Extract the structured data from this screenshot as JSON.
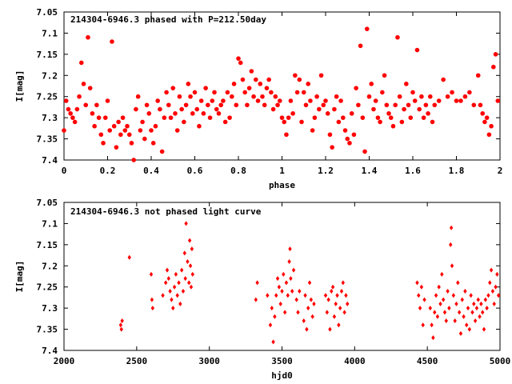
{
  "colors": {
    "points": "#ff0000",
    "axes": "#000000",
    "background": "#ffffff"
  },
  "chart_data": [
    {
      "type": "scatter",
      "title": "214304-6946.3 phased with P=212.50day",
      "xlabel": "phase",
      "ylabel": "I[mag]",
      "xlim": [
        0,
        2
      ],
      "ylim": [
        7.05,
        7.4
      ],
      "y_inverted": true,
      "grid": false,
      "marker": "filled circle",
      "xticks": [
        "0",
        "0.2",
        "0.4",
        "0.6",
        "0.8",
        "1",
        "1.2",
        "1.4",
        "1.6",
        "1.8",
        "2"
      ],
      "yticks": [
        "7.05",
        "7.1",
        "7.15",
        "7.2",
        "7.25",
        "7.3",
        "7.35",
        "7.4"
      ],
      "points": [
        [
          0.0,
          7.33
        ],
        [
          0.01,
          7.26
        ],
        [
          0.02,
          7.28
        ],
        [
          0.03,
          7.29
        ],
        [
          0.04,
          7.3
        ],
        [
          0.05,
          7.31
        ],
        [
          0.06,
          7.28
        ],
        [
          0.07,
          7.25
        ],
        [
          0.08,
          7.17
        ],
        [
          0.09,
          7.22
        ],
        [
          0.1,
          7.27
        ],
        [
          0.11,
          7.11
        ],
        [
          0.12,
          7.23
        ],
        [
          0.13,
          7.29
        ],
        [
          0.14,
          7.32
        ],
        [
          0.15,
          7.27
        ],
        [
          0.16,
          7.3
        ],
        [
          0.17,
          7.34
        ],
        [
          0.18,
          7.36
        ],
        [
          0.19,
          7.3
        ],
        [
          0.2,
          7.26
        ],
        [
          0.21,
          7.33
        ],
        [
          0.22,
          7.12
        ],
        [
          0.23,
          7.32
        ],
        [
          0.24,
          7.37
        ],
        [
          0.25,
          7.31
        ],
        [
          0.26,
          7.34
        ],
        [
          0.27,
          7.3
        ],
        [
          0.28,
          7.33
        ],
        [
          0.29,
          7.32
        ],
        [
          0.3,
          7.34
        ],
        [
          0.31,
          7.36
        ],
        [
          0.32,
          7.4
        ],
        [
          0.33,
          7.28
        ],
        [
          0.34,
          7.25
        ],
        [
          0.35,
          7.33
        ],
        [
          0.36,
          7.31
        ],
        [
          0.37,
          7.35
        ],
        [
          0.38,
          7.27
        ],
        [
          0.39,
          7.29
        ],
        [
          0.4,
          7.33
        ],
        [
          0.41,
          7.36
        ],
        [
          0.42,
          7.32
        ],
        [
          0.43,
          7.26
        ],
        [
          0.44,
          7.28
        ],
        [
          0.45,
          7.38
        ],
        [
          0.46,
          7.3
        ],
        [
          0.47,
          7.24
        ],
        [
          0.48,
          7.27
        ],
        [
          0.49,
          7.3
        ],
        [
          0.5,
          7.23
        ],
        [
          0.51,
          7.29
        ],
        [
          0.52,
          7.33
        ],
        [
          0.53,
          7.25
        ],
        [
          0.54,
          7.28
        ],
        [
          0.55,
          7.31
        ],
        [
          0.56,
          7.27
        ],
        [
          0.57,
          7.22
        ],
        [
          0.58,
          7.25
        ],
        [
          0.59,
          7.29
        ],
        [
          0.6,
          7.24
        ],
        [
          0.61,
          7.28
        ],
        [
          0.62,
          7.32
        ],
        [
          0.63,
          7.26
        ],
        [
          0.64,
          7.29
        ],
        [
          0.65,
          7.23
        ],
        [
          0.66,
          7.27
        ],
        [
          0.67,
          7.3
        ],
        [
          0.68,
          7.26
        ],
        [
          0.69,
          7.24
        ],
        [
          0.7,
          7.28
        ],
        [
          0.71,
          7.29
        ],
        [
          0.72,
          7.27
        ],
        [
          0.73,
          7.26
        ],
        [
          0.74,
          7.31
        ],
        [
          0.75,
          7.24
        ],
        [
          0.76,
          7.3
        ],
        [
          0.77,
          7.25
        ],
        [
          0.78,
          7.22
        ],
        [
          0.79,
          7.27
        ],
        [
          0.8,
          7.16
        ],
        [
          0.81,
          7.17
        ],
        [
          0.82,
          7.21
        ],
        [
          0.83,
          7.24
        ],
        [
          0.84,
          7.27
        ],
        [
          0.85,
          7.23
        ],
        [
          0.86,
          7.19
        ],
        [
          0.87,
          7.25
        ],
        [
          0.88,
          7.21
        ],
        [
          0.89,
          7.26
        ],
        [
          0.9,
          7.22
        ],
        [
          0.91,
          7.25
        ],
        [
          0.92,
          7.27
        ],
        [
          0.93,
          7.23
        ],
        [
          0.94,
          7.21
        ],
        [
          0.95,
          7.24
        ],
        [
          0.96,
          7.28
        ],
        [
          0.97,
          7.25
        ],
        [
          0.98,
          7.27
        ],
        [
          0.99,
          7.26
        ],
        [
          1.0,
          7.3
        ],
        [
          1.01,
          7.31
        ],
        [
          1.02,
          7.34
        ],
        [
          1.03,
          7.3
        ],
        [
          1.04,
          7.26
        ],
        [
          1.05,
          7.29
        ],
        [
          1.06,
          7.2
        ],
        [
          1.07,
          7.24
        ],
        [
          1.08,
          7.21
        ],
        [
          1.09,
          7.31
        ],
        [
          1.1,
          7.24
        ],
        [
          1.11,
          7.27
        ],
        [
          1.12,
          7.22
        ],
        [
          1.13,
          7.26
        ],
        [
          1.14,
          7.33
        ],
        [
          1.15,
          7.3
        ],
        [
          1.16,
          7.25
        ],
        [
          1.17,
          7.28
        ],
        [
          1.18,
          7.2
        ],
        [
          1.19,
          7.27
        ],
        [
          1.2,
          7.26
        ],
        [
          1.21,
          7.29
        ],
        [
          1.22,
          7.34
        ],
        [
          1.23,
          7.37
        ],
        [
          1.24,
          7.28
        ],
        [
          1.25,
          7.25
        ],
        [
          1.26,
          7.31
        ],
        [
          1.27,
          7.26
        ],
        [
          1.28,
          7.3
        ],
        [
          1.29,
          7.33
        ],
        [
          1.3,
          7.35
        ],
        [
          1.31,
          7.36
        ],
        [
          1.32,
          7.29
        ],
        [
          1.33,
          7.34
        ],
        [
          1.34,
          7.23
        ],
        [
          1.35,
          7.27
        ],
        [
          1.36,
          7.13
        ],
        [
          1.37,
          7.3
        ],
        [
          1.38,
          7.38
        ],
        [
          1.39,
          7.09
        ],
        [
          1.4,
          7.25
        ],
        [
          1.41,
          7.22
        ],
        [
          1.42,
          7.28
        ],
        [
          1.43,
          7.26
        ],
        [
          1.44,
          7.3
        ],
        [
          1.45,
          7.31
        ],
        [
          1.46,
          7.24
        ],
        [
          1.47,
          7.2
        ],
        [
          1.48,
          7.27
        ],
        [
          1.49,
          7.29
        ],
        [
          1.5,
          7.3
        ],
        [
          1.51,
          7.32
        ],
        [
          1.52,
          7.27
        ],
        [
          1.53,
          7.11
        ],
        [
          1.54,
          7.25
        ],
        [
          1.55,
          7.31
        ],
        [
          1.56,
          7.28
        ],
        [
          1.57,
          7.22
        ],
        [
          1.58,
          7.27
        ],
        [
          1.59,
          7.3
        ],
        [
          1.6,
          7.24
        ],
        [
          1.61,
          7.26
        ],
        [
          1.62,
          7.14
        ],
        [
          1.63,
          7.28
        ],
        [
          1.64,
          7.25
        ],
        [
          1.65,
          7.3
        ],
        [
          1.66,
          7.27
        ],
        [
          1.67,
          7.29
        ],
        [
          1.68,
          7.25
        ],
        [
          1.69,
          7.31
        ],
        [
          1.7,
          7.27
        ],
        [
          1.72,
          7.26
        ],
        [
          1.74,
          7.21
        ],
        [
          1.76,
          7.25
        ],
        [
          1.78,
          7.24
        ],
        [
          1.8,
          7.26
        ],
        [
          1.82,
          7.26
        ],
        [
          1.84,
          7.25
        ],
        [
          1.86,
          7.24
        ],
        [
          1.88,
          7.27
        ],
        [
          1.9,
          7.2
        ],
        [
          1.91,
          7.27
        ],
        [
          1.92,
          7.29
        ],
        [
          1.93,
          7.31
        ],
        [
          1.94,
          7.3
        ],
        [
          1.95,
          7.34
        ],
        [
          1.96,
          7.32
        ],
        [
          1.97,
          7.18
        ],
        [
          1.98,
          7.15
        ],
        [
          1.99,
          7.26
        ]
      ]
    },
    {
      "type": "scatter",
      "title": "214304-6946.3 not phased light curve",
      "xlabel": "hjd0",
      "ylabel": "I[mag]",
      "xlim": [
        2000,
        5000
      ],
      "ylim": [
        7.05,
        7.4
      ],
      "y_inverted": true,
      "grid": false,
      "marker": "filled diamond",
      "xticks": [
        "2000",
        "2500",
        "3000",
        "3500",
        "4000",
        "4500",
        "5000"
      ],
      "yticks": [
        "7.05",
        "7.1",
        "7.15",
        "7.2",
        "7.25",
        "7.3",
        "7.35",
        "7.4"
      ],
      "points": [
        [
          2390,
          7.34
        ],
        [
          2395,
          7.35
        ],
        [
          2400,
          7.33
        ],
        [
          2450,
          7.18
        ],
        [
          2600,
          7.22
        ],
        [
          2605,
          7.28
        ],
        [
          2610,
          7.3
        ],
        [
          2680,
          7.27
        ],
        [
          2700,
          7.24
        ],
        [
          2710,
          7.21
        ],
        [
          2720,
          7.23
        ],
        [
          2730,
          7.26
        ],
        [
          2740,
          7.28
        ],
        [
          2750,
          7.3
        ],
        [
          2760,
          7.25
        ],
        [
          2770,
          7.22
        ],
        [
          2780,
          7.27
        ],
        [
          2790,
          7.24
        ],
        [
          2800,
          7.29
        ],
        [
          2810,
          7.21
        ],
        [
          2820,
          7.26
        ],
        [
          2830,
          7.17
        ],
        [
          2835,
          7.23
        ],
        [
          2840,
          7.1
        ],
        [
          2850,
          7.19
        ],
        [
          2860,
          7.24
        ],
        [
          2865,
          7.14
        ],
        [
          2870,
          7.2
        ],
        [
          2875,
          7.25
        ],
        [
          2880,
          7.16
        ],
        [
          2885,
          7.22
        ],
        [
          3320,
          7.28
        ],
        [
          3330,
          7.24
        ],
        [
          3400,
          7.27
        ],
        [
          3420,
          7.34
        ],
        [
          3430,
          7.3
        ],
        [
          3440,
          7.38
        ],
        [
          3450,
          7.32
        ],
        [
          3460,
          7.27
        ],
        [
          3470,
          7.23
        ],
        [
          3480,
          7.25
        ],
        [
          3490,
          7.29
        ],
        [
          3500,
          7.26
        ],
        [
          3510,
          7.22
        ],
        [
          3520,
          7.31
        ],
        [
          3530,
          7.24
        ],
        [
          3540,
          7.27
        ],
        [
          3550,
          7.19
        ],
        [
          3555,
          7.16
        ],
        [
          3560,
          7.23
        ],
        [
          3570,
          7.26
        ],
        [
          3580,
          7.21
        ],
        [
          3600,
          7.28
        ],
        [
          3610,
          7.31
        ],
        [
          3620,
          7.26
        ],
        [
          3650,
          7.33
        ],
        [
          3660,
          7.27
        ],
        [
          3670,
          7.35
        ],
        [
          3680,
          7.3
        ],
        [
          3690,
          7.24
        ],
        [
          3700,
          7.28
        ],
        [
          3710,
          7.32
        ],
        [
          3720,
          7.29
        ],
        [
          3800,
          7.27
        ],
        [
          3810,
          7.31
        ],
        [
          3820,
          7.28
        ],
        [
          3830,
          7.35
        ],
        [
          3840,
          7.26
        ],
        [
          3850,
          7.25
        ],
        [
          3860,
          7.32
        ],
        [
          3870,
          7.29
        ],
        [
          3880,
          7.27
        ],
        [
          3890,
          7.34
        ],
        [
          3900,
          7.3
        ],
        [
          3910,
          7.26
        ],
        [
          3920,
          7.24
        ],
        [
          3930,
          7.31
        ],
        [
          3940,
          7.27
        ],
        [
          3950,
          7.29
        ],
        [
          4430,
          7.24
        ],
        [
          4440,
          7.27
        ],
        [
          4450,
          7.3
        ],
        [
          4460,
          7.25
        ],
        [
          4470,
          7.34
        ],
        [
          4480,
          7.28
        ],
        [
          4520,
          7.3
        ],
        [
          4530,
          7.34
        ],
        [
          4540,
          7.37
        ],
        [
          4550,
          7.31
        ],
        [
          4560,
          7.27
        ],
        [
          4570,
          7.32
        ],
        [
          4580,
          7.25
        ],
        [
          4590,
          7.29
        ],
        [
          4600,
          7.22
        ],
        [
          4610,
          7.28
        ],
        [
          4620,
          7.31
        ],
        [
          4630,
          7.33
        ],
        [
          4640,
          7.26
        ],
        [
          4650,
          7.3
        ],
        [
          4660,
          7.15
        ],
        [
          4665,
          7.11
        ],
        [
          4670,
          7.2
        ],
        [
          4680,
          7.27
        ],
        [
          4690,
          7.33
        ],
        [
          4700,
          7.29
        ],
        [
          4710,
          7.24
        ],
        [
          4720,
          7.31
        ],
        [
          4730,
          7.36
        ],
        [
          4740,
          7.28
        ],
        [
          4750,
          7.32
        ],
        [
          4760,
          7.26
        ],
        [
          4770,
          7.34
        ],
        [
          4780,
          7.3
        ],
        [
          4790,
          7.35
        ],
        [
          4800,
          7.27
        ],
        [
          4810,
          7.31
        ],
        [
          4820,
          7.29
        ],
        [
          4830,
          7.33
        ],
        [
          4840,
          7.3
        ],
        [
          4850,
          7.28
        ],
        [
          4860,
          7.32
        ],
        [
          4870,
          7.29
        ],
        [
          4880,
          7.31
        ],
        [
          4890,
          7.35
        ],
        [
          4900,
          7.28
        ],
        [
          4910,
          7.3
        ],
        [
          4920,
          7.27
        ],
        [
          4930,
          7.24
        ],
        [
          4940,
          7.21
        ],
        [
          4950,
          7.26
        ],
        [
          4960,
          7.29
        ],
        [
          4970,
          7.25
        ],
        [
          4980,
          7.22
        ],
        [
          4990,
          7.27
        ]
      ]
    }
  ]
}
